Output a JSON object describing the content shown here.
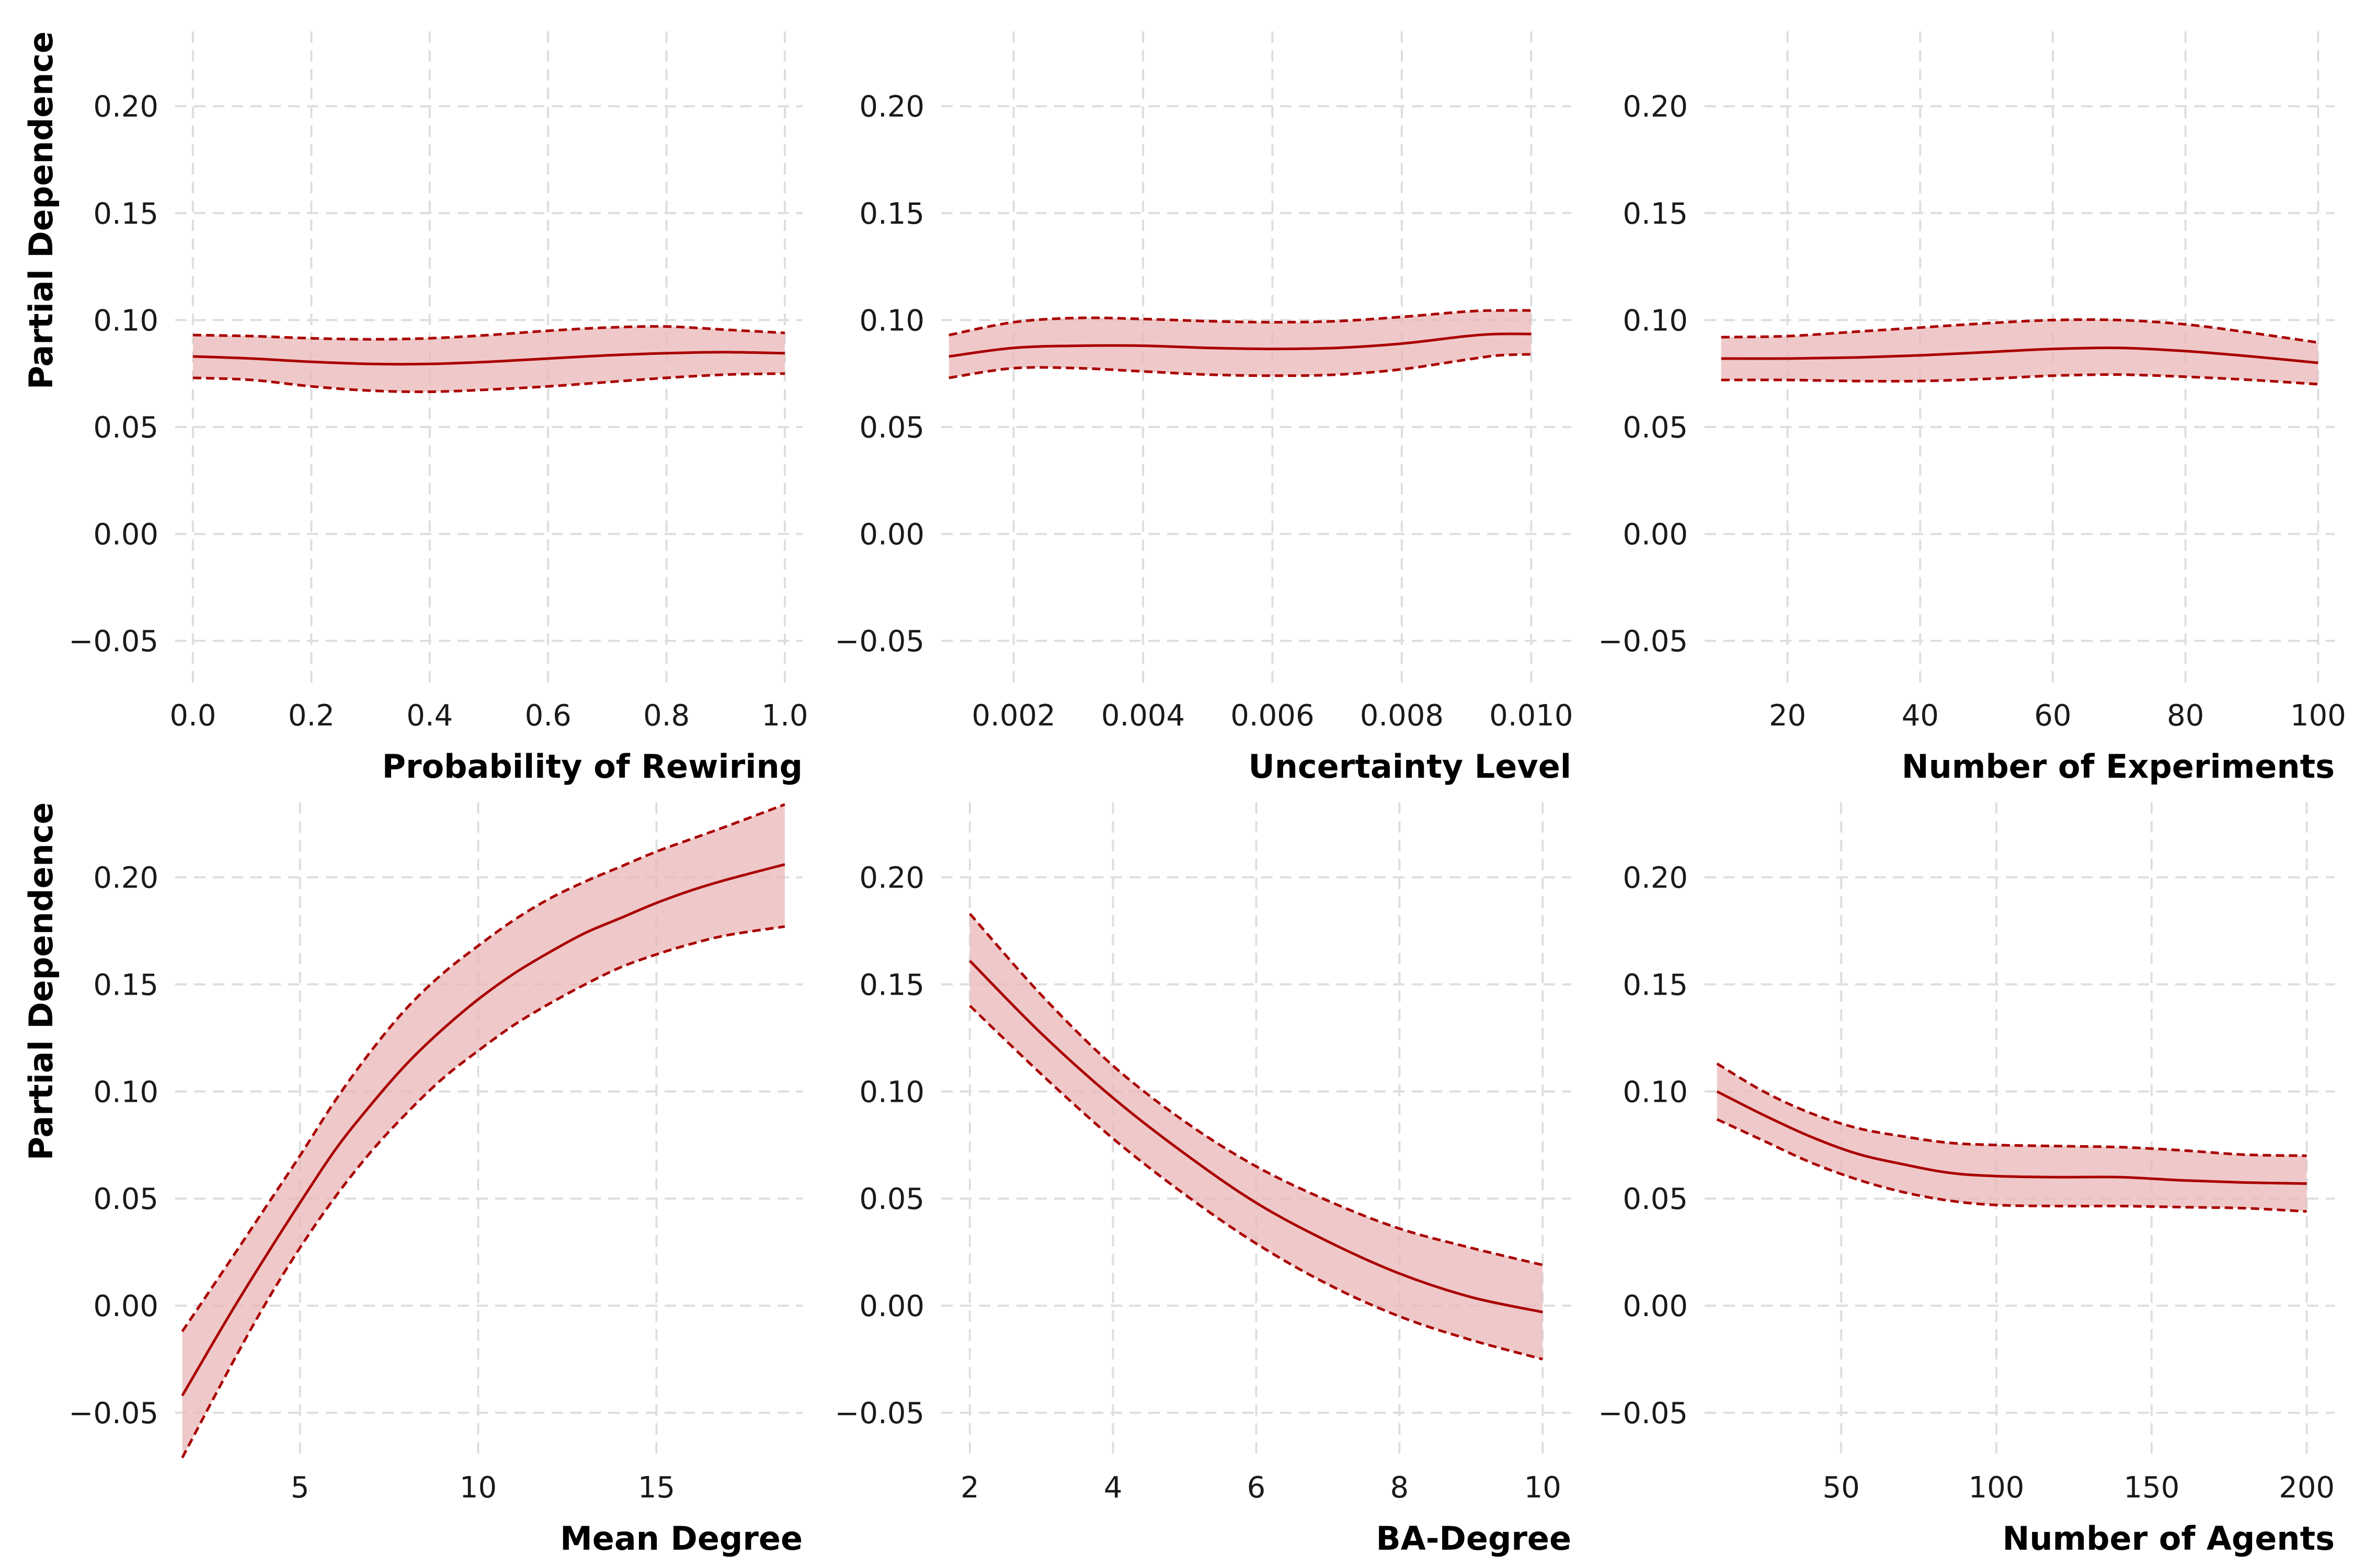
{
  "colors": {
    "line": "#aa0000",
    "band": "#e9b7b7",
    "grid": "#dedede"
  },
  "chart_data": [
    {
      "type": "line",
      "xlabel": "Probability of Rewiring",
      "ylabel": "Partial Dependence",
      "xlim": [
        -0.03,
        1.03
      ],
      "ylim": [
        -0.07,
        0.235
      ],
      "xticks": [
        0.0,
        0.2,
        0.4,
        0.6,
        0.8,
        1.0
      ],
      "xtick_labels": [
        "0.0",
        "0.2",
        "0.4",
        "0.6",
        "0.8",
        "1.0"
      ],
      "yticks": [
        -0.05,
        0.0,
        0.05,
        0.1,
        0.15,
        0.2
      ],
      "ytick_labels": [
        "−0.05",
        "0.00",
        "0.05",
        "0.10",
        "0.15",
        "0.20"
      ],
      "series": [
        {
          "values": [
            [
              0.0,
              0.083
            ],
            [
              0.1,
              0.082
            ],
            [
              0.2,
              0.0805
            ],
            [
              0.3,
              0.0795
            ],
            [
              0.4,
              0.0795
            ],
            [
              0.5,
              0.0805
            ],
            [
              0.6,
              0.082
            ],
            [
              0.7,
              0.0835
            ],
            [
              0.8,
              0.0845
            ],
            [
              0.9,
              0.085
            ],
            [
              1.0,
              0.0845
            ]
          ]
        },
        {
          "values": [
            [
              0.0,
              0.093
            ],
            [
              0.1,
              0.0925
            ],
            [
              0.2,
              0.0915
            ],
            [
              0.3,
              0.091
            ],
            [
              0.4,
              0.0915
            ],
            [
              0.5,
              0.093
            ],
            [
              0.6,
              0.095
            ],
            [
              0.7,
              0.0965
            ],
            [
              0.8,
              0.097
            ],
            [
              0.9,
              0.0955
            ],
            [
              1.0,
              0.094
            ]
          ]
        },
        {
          "values": [
            [
              0.0,
              0.073
            ],
            [
              0.1,
              0.072
            ],
            [
              0.2,
              0.069
            ],
            [
              0.3,
              0.067
            ],
            [
              0.4,
              0.0665
            ],
            [
              0.5,
              0.0675
            ],
            [
              0.6,
              0.069
            ],
            [
              0.7,
              0.071
            ],
            [
              0.8,
              0.073
            ],
            [
              0.9,
              0.0745
            ],
            [
              1.0,
              0.075
            ]
          ]
        }
      ]
    },
    {
      "type": "line",
      "xlabel": "Uncertainty Level",
      "xlim": [
        0.00088,
        0.01062
      ],
      "ylim": [
        -0.07,
        0.235
      ],
      "xticks": [
        0.002,
        0.004,
        0.006,
        0.008,
        0.01
      ],
      "xtick_labels": [
        "0.002",
        "0.004",
        "0.006",
        "0.008",
        "0.010"
      ],
      "yticks": [
        -0.05,
        0.0,
        0.05,
        0.1,
        0.15,
        0.2
      ],
      "ytick_labels": [
        "−0.05",
        "0.00",
        "0.05",
        "0.10",
        "0.15",
        "0.20"
      ],
      "series": [
        {
          "values": [
            [
              0.001,
              0.083
            ],
            [
              0.002,
              0.087
            ],
            [
              0.003,
              0.088
            ],
            [
              0.004,
              0.088
            ],
            [
              0.005,
              0.087
            ],
            [
              0.006,
              0.0865
            ],
            [
              0.007,
              0.087
            ],
            [
              0.008,
              0.089
            ],
            [
              0.009,
              0.0925
            ],
            [
              0.0095,
              0.0935
            ],
            [
              0.01,
              0.0935
            ]
          ]
        },
        {
          "values": [
            [
              0.001,
              0.093
            ],
            [
              0.002,
              0.099
            ],
            [
              0.003,
              0.101
            ],
            [
              0.004,
              0.1005
            ],
            [
              0.005,
              0.0995
            ],
            [
              0.006,
              0.099
            ],
            [
              0.007,
              0.0995
            ],
            [
              0.008,
              0.1015
            ],
            [
              0.009,
              0.104
            ],
            [
              0.0095,
              0.1045
            ],
            [
              0.01,
              0.1045
            ]
          ]
        },
        {
          "values": [
            [
              0.001,
              0.073
            ],
            [
              0.002,
              0.0775
            ],
            [
              0.003,
              0.0775
            ],
            [
              0.004,
              0.076
            ],
            [
              0.005,
              0.0745
            ],
            [
              0.006,
              0.074
            ],
            [
              0.007,
              0.0745
            ],
            [
              0.008,
              0.077
            ],
            [
              0.009,
              0.0815
            ],
            [
              0.0095,
              0.0835
            ],
            [
              0.01,
              0.084
            ]
          ]
        }
      ]
    },
    {
      "type": "line",
      "xlabel": "Number of Experiments",
      "xlim": [
        7.5,
        102.5
      ],
      "ylim": [
        -0.07,
        0.235
      ],
      "xticks": [
        20,
        40,
        60,
        80,
        100
      ],
      "xtick_labels": [
        "20",
        "40",
        "60",
        "80",
        "100"
      ],
      "yticks": [
        -0.05,
        0.0,
        0.05,
        0.1,
        0.15,
        0.2
      ],
      "ytick_labels": [
        "−0.05",
        "0.00",
        "0.05",
        "0.10",
        "0.15",
        "0.20"
      ],
      "series": [
        {
          "values": [
            [
              10,
              0.082
            ],
            [
              20,
              0.082
            ],
            [
              30,
              0.0825
            ],
            [
              40,
              0.0835
            ],
            [
              50,
              0.085
            ],
            [
              60,
              0.0865
            ],
            [
              70,
              0.087
            ],
            [
              80,
              0.0855
            ],
            [
              90,
              0.083
            ],
            [
              100,
              0.08
            ]
          ]
        },
        {
          "values": [
            [
              10,
              0.092
            ],
            [
              20,
              0.0925
            ],
            [
              30,
              0.0945
            ],
            [
              40,
              0.0965
            ],
            [
              50,
              0.0985
            ],
            [
              60,
              0.1
            ],
            [
              70,
              0.1
            ],
            [
              80,
              0.098
            ],
            [
              90,
              0.094
            ],
            [
              100,
              0.0895
            ]
          ]
        },
        {
          "values": [
            [
              10,
              0.072
            ],
            [
              20,
              0.072
            ],
            [
              30,
              0.0715
            ],
            [
              40,
              0.0715
            ],
            [
              50,
              0.0725
            ],
            [
              60,
              0.074
            ],
            [
              70,
              0.0745
            ],
            [
              80,
              0.0735
            ],
            [
              90,
              0.072
            ],
            [
              100,
              0.07
            ]
          ]
        }
      ]
    },
    {
      "type": "line",
      "xlabel": "Mean Degree",
      "ylabel": "Partial Dependence",
      "xlim": [
        1.5,
        19.1
      ],
      "ylim": [
        -0.07,
        0.235
      ],
      "xticks": [
        5,
        10,
        15
      ],
      "xtick_labels": [
        "5",
        "10",
        "15"
      ],
      "yticks": [
        -0.05,
        0.0,
        0.05,
        0.1,
        0.15,
        0.2
      ],
      "ytick_labels": [
        "−0.05",
        "0.00",
        "0.05",
        "0.10",
        "0.15",
        "0.20"
      ],
      "series": [
        {
          "values": [
            [
              1.7,
              -0.042
            ],
            [
              3,
              -0.005
            ],
            [
              4,
              0.022
            ],
            [
              5,
              0.048
            ],
            [
              6,
              0.073
            ],
            [
              7,
              0.094
            ],
            [
              8,
              0.113
            ],
            [
              9,
              0.129
            ],
            [
              10,
              0.143
            ],
            [
              11,
              0.155
            ],
            [
              12,
              0.165
            ],
            [
              13,
              0.174
            ],
            [
              14,
              0.181
            ],
            [
              15,
              0.188
            ],
            [
              16,
              0.194
            ],
            [
              17,
              0.199
            ],
            [
              18.6,
              0.206
            ]
          ]
        },
        {
          "values": [
            [
              1.7,
              -0.012
            ],
            [
              3,
              0.02
            ],
            [
              4,
              0.045
            ],
            [
              5,
              0.07
            ],
            [
              6,
              0.096
            ],
            [
              7,
              0.119
            ],
            [
              8,
              0.139
            ],
            [
              9,
              0.155
            ],
            [
              10,
              0.168
            ],
            [
              11,
              0.18
            ],
            [
              12,
              0.19
            ],
            [
              13,
              0.198
            ],
            [
              14,
              0.205
            ],
            [
              15,
              0.212
            ],
            [
              16,
              0.218
            ],
            [
              17,
              0.224
            ],
            [
              18.6,
              0.234
            ]
          ]
        },
        {
          "values": [
            [
              1.7,
              -0.071
            ],
            [
              3,
              -0.03
            ],
            [
              4,
              0.0
            ],
            [
              5,
              0.027
            ],
            [
              6,
              0.051
            ],
            [
              7,
              0.072
            ],
            [
              8,
              0.09
            ],
            [
              9,
              0.106
            ],
            [
              10,
              0.119
            ],
            [
              11,
              0.131
            ],
            [
              12,
              0.141
            ],
            [
              13,
              0.15
            ],
            [
              14,
              0.158
            ],
            [
              15,
              0.164
            ],
            [
              16,
              0.169
            ],
            [
              17,
              0.173
            ],
            [
              18.6,
              0.177
            ]
          ]
        }
      ]
    },
    {
      "type": "line",
      "xlabel": "BA-Degree",
      "xlim": [
        1.6,
        10.4
      ],
      "ylim": [
        -0.07,
        0.235
      ],
      "xticks": [
        2,
        4,
        6,
        8,
        10
      ],
      "xtick_labels": [
        "2",
        "4",
        "6",
        "8",
        "10"
      ],
      "yticks": [
        -0.05,
        0.0,
        0.05,
        0.1,
        0.15,
        0.2
      ],
      "ytick_labels": [
        "−0.05",
        "0.00",
        "0.05",
        "0.10",
        "0.15",
        "0.20"
      ],
      "series": [
        {
          "values": [
            [
              2,
              0.161
            ],
            [
              3,
              0.127
            ],
            [
              4,
              0.097
            ],
            [
              5,
              0.071
            ],
            [
              6,
              0.048
            ],
            [
              7,
              0.03
            ],
            [
              8,
              0.015
            ],
            [
              9,
              0.004
            ],
            [
              10,
              -0.003
            ]
          ]
        },
        {
          "values": [
            [
              2,
              0.183
            ],
            [
              3,
              0.145
            ],
            [
              4,
              0.112
            ],
            [
              5,
              0.086
            ],
            [
              6,
              0.065
            ],
            [
              7,
              0.049
            ],
            [
              8,
              0.036
            ],
            [
              9,
              0.027
            ],
            [
              10,
              0.019
            ]
          ]
        },
        {
          "values": [
            [
              2,
              0.14
            ],
            [
              3,
              0.108
            ],
            [
              4,
              0.078
            ],
            [
              5,
              0.052
            ],
            [
              6,
              0.029
            ],
            [
              7,
              0.01
            ],
            [
              8,
              -0.005
            ],
            [
              9,
              -0.016
            ],
            [
              10,
              -0.025
            ]
          ]
        }
      ]
    },
    {
      "type": "line",
      "xlabel": "Number of Agents",
      "xlim": [
        6,
        209
      ],
      "ylim": [
        -0.07,
        0.235
      ],
      "xticks": [
        50,
        100,
        150,
        200
      ],
      "xtick_labels": [
        "50",
        "100",
        "150",
        "200"
      ],
      "yticks": [
        -0.05,
        0.0,
        0.05,
        0.1,
        0.15,
        0.2
      ],
      "ytick_labels": [
        "−0.05",
        "0.00",
        "0.05",
        "0.10",
        "0.15",
        "0.20"
      ],
      "series": [
        {
          "values": [
            [
              10,
              0.1
            ],
            [
              25,
              0.089
            ],
            [
              40,
              0.079
            ],
            [
              55,
              0.071
            ],
            [
              70,
              0.066
            ],
            [
              85,
              0.062
            ],
            [
              100,
              0.0605
            ],
            [
              120,
              0.06
            ],
            [
              140,
              0.06
            ],
            [
              160,
              0.0585
            ],
            [
              180,
              0.0575
            ],
            [
              200,
              0.057
            ]
          ]
        },
        {
          "values": [
            [
              10,
              0.113
            ],
            [
              25,
              0.1
            ],
            [
              40,
              0.09
            ],
            [
              55,
              0.083
            ],
            [
              70,
              0.079
            ],
            [
              85,
              0.076
            ],
            [
              100,
              0.075
            ],
            [
              120,
              0.0745
            ],
            [
              140,
              0.074
            ],
            [
              160,
              0.0725
            ],
            [
              180,
              0.0705
            ],
            [
              200,
              0.07
            ]
          ]
        },
        {
          "values": [
            [
              10,
              0.087
            ],
            [
              25,
              0.077
            ],
            [
              40,
              0.067
            ],
            [
              55,
              0.059
            ],
            [
              70,
              0.053
            ],
            [
              85,
              0.049
            ],
            [
              100,
              0.047
            ],
            [
              120,
              0.0465
            ],
            [
              140,
              0.0465
            ],
            [
              160,
              0.046
            ],
            [
              180,
              0.0455
            ],
            [
              200,
              0.044
            ]
          ]
        }
      ]
    }
  ]
}
